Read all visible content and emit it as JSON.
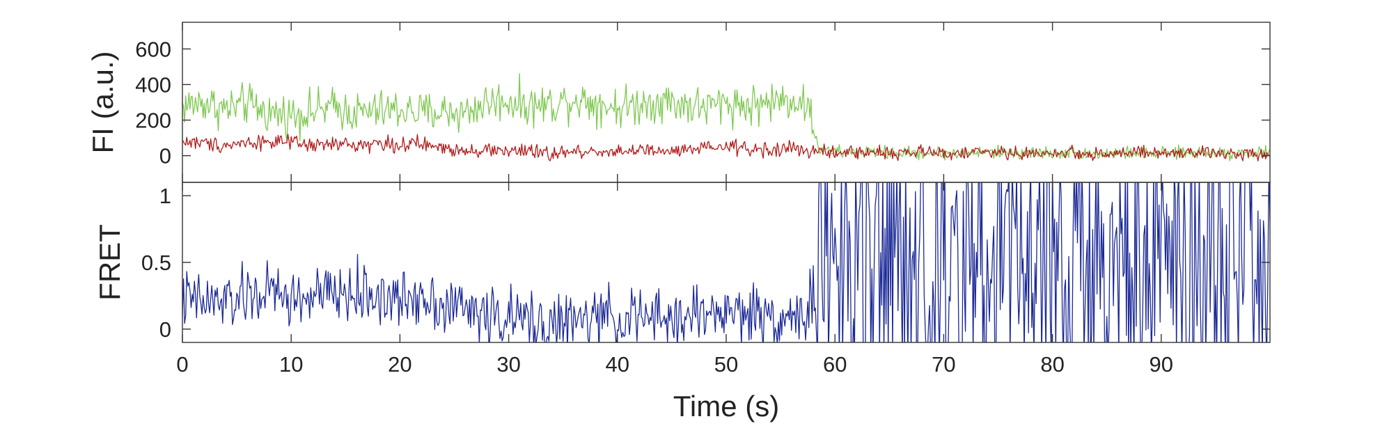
{
  "chart_data": [
    {
      "type": "line",
      "panel": "top",
      "title": "",
      "xlabel": "",
      "ylabel": "FI (a.u.)",
      "xlim": [
        0,
        100
      ],
      "ylim": [
        -150,
        750
      ],
      "y_ticks": [
        0,
        200,
        400,
        600
      ],
      "x_ticks": [
        0,
        10,
        20,
        30,
        40,
        50,
        60,
        70,
        80,
        90
      ],
      "grid": false,
      "legend": "none",
      "colors": {
        "donor": "#7ec850",
        "acceptor": "#b21a1a"
      },
      "series": [
        {
          "color": "#7ec850",
          "x": [
            0,
            2,
            4,
            6,
            8,
            10,
            12,
            14,
            16,
            18,
            20,
            22,
            24,
            26,
            28,
            30,
            32,
            34,
            36,
            38,
            40,
            42,
            44,
            46,
            48,
            50,
            52,
            54,
            56,
            57.5,
            58.5,
            60,
            62,
            64,
            66,
            68,
            70,
            72,
            74,
            76,
            78,
            80,
            82,
            84,
            86,
            88,
            90,
            92,
            94,
            96,
            98,
            100
          ],
          "values": [
            280,
            300,
            260,
            290,
            240,
            230,
            250,
            270,
            240,
            250,
            260,
            240,
            250,
            240,
            300,
            310,
            280,
            290,
            320,
            300,
            270,
            290,
            310,
            290,
            270,
            300,
            280,
            300,
            320,
            280,
            40,
            20,
            20,
            20,
            15,
            15,
            15,
            15,
            20,
            15,
            15,
            15,
            20,
            10,
            15,
            15,
            10,
            15,
            20,
            15,
            15,
            15
          ]
        },
        {
          "color": "#b21a1a",
          "x": [
            0,
            2,
            4,
            6,
            8,
            10,
            12,
            14,
            16,
            18,
            20,
            22,
            24,
            26,
            28,
            30,
            32,
            34,
            36,
            38,
            40,
            42,
            44,
            46,
            48,
            50,
            52,
            54,
            56,
            57.5,
            58.5,
            60,
            62,
            64,
            66,
            68,
            70,
            72,
            74,
            76,
            78,
            80,
            82,
            84,
            86,
            88,
            90,
            92,
            94,
            96,
            98,
            100
          ],
          "values": [
            80,
            70,
            60,
            75,
            80,
            70,
            55,
            65,
            60,
            70,
            60,
            65,
            40,
            35,
            30,
            30,
            20,
            10,
            20,
            25,
            25,
            30,
            20,
            25,
            40,
            50,
            40,
            30,
            40,
            30,
            20,
            15,
            20,
            20,
            15,
            20,
            15,
            15,
            20,
            15,
            10,
            15,
            15,
            10,
            15,
            15,
            10,
            15,
            15,
            10,
            15,
            15
          ]
        }
      ]
    },
    {
      "type": "line",
      "panel": "bottom",
      "title": "",
      "xlabel": "Time (s)",
      "ylabel": "FRET",
      "xlim": [
        0,
        100
      ],
      "ylim": [
        -0.1,
        1.1
      ],
      "y_ticks": [
        0,
        0.5,
        1
      ],
      "y_tick_labels": [
        "0",
        "0.5",
        "1"
      ],
      "x_ticks": [
        0,
        10,
        20,
        30,
        40,
        50,
        60,
        70,
        80,
        90
      ],
      "x_tick_labels": [
        "0",
        "10",
        "20",
        "30",
        "40",
        "50",
        "60",
        "70",
        "80",
        "90"
      ],
      "grid": false,
      "legend": "none",
      "series": [
        {
          "color": "#1a2896",
          "x": [
            0,
            2,
            4,
            6,
            8,
            10,
            12,
            14,
            16,
            18,
            20,
            22,
            24,
            26,
            28,
            30,
            32,
            34,
            36,
            38,
            40,
            42,
            44,
            46,
            48,
            50,
            52,
            54,
            56,
            57.5,
            58.5,
            60,
            62,
            64,
            66,
            68,
            70,
            72,
            74,
            76,
            78,
            80,
            82,
            84,
            86,
            88,
            90,
            92,
            94,
            96,
            98,
            100
          ],
          "values": [
            0.22,
            0.2,
            0.2,
            0.24,
            0.28,
            0.22,
            0.24,
            0.26,
            0.26,
            0.25,
            0.2,
            0.27,
            0.18,
            0.16,
            0.1,
            0.08,
            0.06,
            0.04,
            0.05,
            0.08,
            0.08,
            0.09,
            0.06,
            0.09,
            0.12,
            0.13,
            0.12,
            0.1,
            0.1,
            0.1,
            0.5,
            0.55,
            0.5,
            0.5,
            0.5,
            0.5,
            0.5,
            0.5,
            0.55,
            0.5,
            0.5,
            0.5,
            0.5,
            0.5,
            0.5,
            0.5,
            0.5,
            0.5,
            0.5,
            0.5,
            0.5,
            0.5
          ]
        }
      ]
    }
  ]
}
